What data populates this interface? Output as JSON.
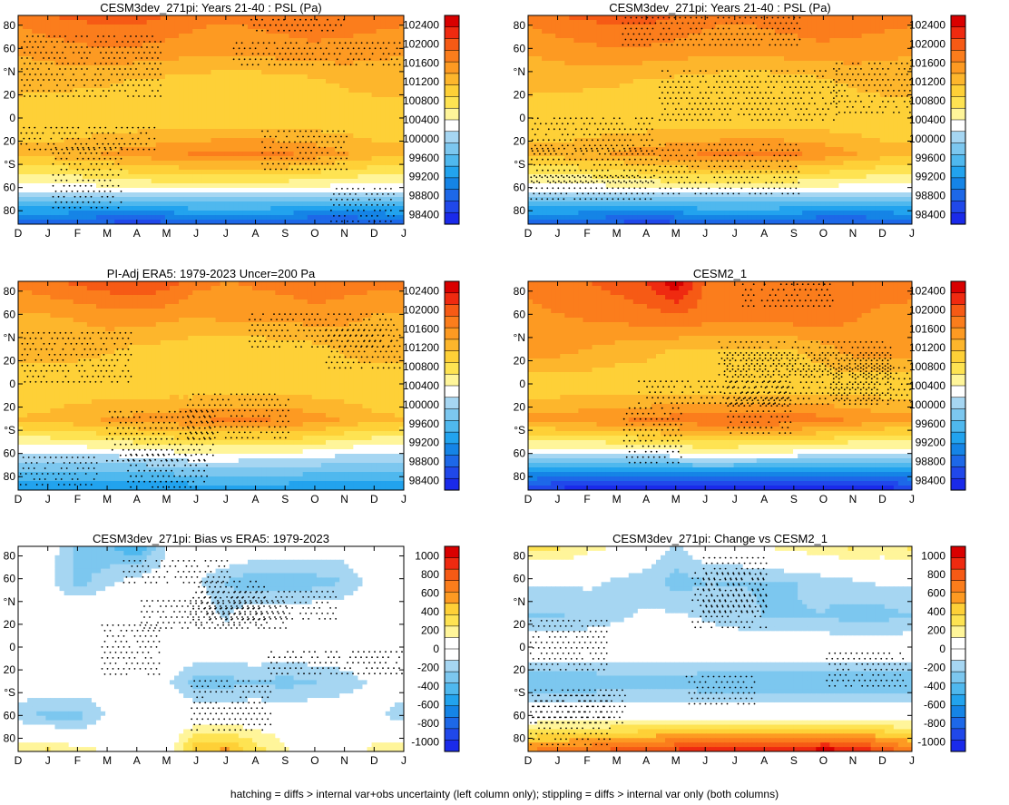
{
  "figure": {
    "footnote": "hatching = diffs > internal var+obs uncertainty (left column only); stippling = diffs > internal var only (both columns)"
  },
  "colorbars": {
    "psl": {
      "labels": [
        "102400",
        "102000",
        "101600",
        "101200",
        "100800",
        "100400",
        "100000",
        "99600",
        "99200",
        "98800",
        "98400"
      ],
      "colors": [
        "#d90000",
        "#ef2a10",
        "#f65a15",
        "#fb7d1c",
        "#fd9a22",
        "#fdb62c",
        "#fed037",
        "#fee352",
        "#fff59a",
        "#ffffff",
        "#a6d6f2",
        "#7cc7ef",
        "#4fb8ee",
        "#22a3ee",
        "#1584e6",
        "#1d68e8",
        "#2048ea",
        "#1a2aea"
      ]
    },
    "diff": {
      "labels": [
        "1000",
        "800",
        "600",
        "400",
        "200",
        "0",
        "-200",
        "-400",
        "-600",
        "-800",
        "-1000"
      ],
      "colors": [
        "#d90000",
        "#ef2a10",
        "#f65a15",
        "#fb7d1c",
        "#fd9a22",
        "#fed037",
        "#fee352",
        "#fff59a",
        "#ffffff",
        "#ffffff",
        "#a6d6f2",
        "#7cc7ef",
        "#4fb8ee",
        "#22a3ee",
        "#1584e6",
        "#1d68e8",
        "#2048ea",
        "#1a2aea"
      ]
    }
  },
  "chart_data": [
    {
      "type": "heatmap",
      "title": "CESM3dev_271pi: Years 21-40 : PSL (Pa)",
      "xlabel": "",
      "ylabel": "",
      "x_ticks": [
        "D",
        "J",
        "F",
        "M",
        "A",
        "M",
        "J",
        "J",
        "A",
        "S",
        "O",
        "N",
        "D",
        "J"
      ],
      "y_ticks": [
        "80",
        "60",
        "°N",
        "20",
        "0",
        "20",
        "°S",
        "60",
        "80"
      ],
      "colorbar": "psl",
      "latitudes": [
        90,
        60,
        30,
        0,
        -30,
        -60,
        -90
      ],
      "months": [
        "D",
        "J",
        "F",
        "M",
        "A",
        "M",
        "J",
        "J",
        "A",
        "S",
        "O",
        "N",
        "D",
        "J"
      ],
      "values": [
        [
          101700,
          101850,
          101900,
          101950,
          101950,
          101850,
          101700,
          101650,
          101700,
          101750,
          101800,
          101800,
          101750,
          101700
        ],
        [
          101400,
          101450,
          101550,
          101550,
          101550,
          101500,
          101450,
          101450,
          101450,
          101500,
          101550,
          101500,
          101450,
          101400
        ],
        [
          101200,
          101200,
          101150,
          101150,
          101000,
          101000,
          100950,
          100900,
          100900,
          100950,
          101000,
          101150,
          101200,
          101200
        ],
        [
          100950,
          100900,
          100950,
          100950,
          100950,
          100950,
          100900,
          100950,
          100950,
          100950,
          100950,
          100950,
          100950,
          100950
        ],
        [
          101200,
          101250,
          101300,
          101400,
          101500,
          101550,
          101650,
          101700,
          101700,
          101650,
          101550,
          101400,
          101250,
          101200
        ],
        [
          100300,
          100300,
          100300,
          100350,
          100400,
          100450,
          100450,
          100400,
          100400,
          100400,
          100350,
          100300,
          100300,
          100300
        ],
        [
          98800,
          98800,
          98750,
          98700,
          98650,
          98700,
          98750,
          98800,
          98800,
          98750,
          98700,
          98700,
          98750,
          98800
        ]
      ]
    },
    {
      "type": "heatmap",
      "title": "CESM3dev_271pi: Years 21-40 : PSL (Pa)",
      "xlabel": "",
      "ylabel": "",
      "x_ticks": [
        "D",
        "J",
        "F",
        "M",
        "A",
        "M",
        "J",
        "J",
        "A",
        "S",
        "O",
        "N",
        "D",
        "J"
      ],
      "y_ticks": [
        "80",
        "60",
        "°N",
        "20",
        "0",
        "20",
        "°S",
        "60",
        "80"
      ],
      "colorbar": "psl",
      "latitudes": [
        90,
        60,
        30,
        0,
        -30,
        -60,
        -90
      ],
      "months": [
        "D",
        "J",
        "F",
        "M",
        "A",
        "M",
        "J",
        "J",
        "A",
        "S",
        "O",
        "N",
        "D",
        "J"
      ],
      "values": [
        [
          101700,
          101850,
          101900,
          101950,
          101950,
          101850,
          101700,
          101650,
          101700,
          101750,
          101800,
          101800,
          101750,
          101700
        ],
        [
          101400,
          101450,
          101550,
          101550,
          101550,
          101500,
          101450,
          101450,
          101450,
          101500,
          101550,
          101500,
          101450,
          101400
        ],
        [
          101200,
          101200,
          101150,
          101150,
          101000,
          101000,
          100950,
          100900,
          100900,
          100950,
          101000,
          101150,
          101200,
          101200
        ],
        [
          100950,
          100900,
          100950,
          100950,
          100950,
          100950,
          100900,
          100950,
          100950,
          100950,
          100950,
          100950,
          100950,
          100950
        ],
        [
          101200,
          101250,
          101300,
          101400,
          101500,
          101550,
          101650,
          101700,
          101700,
          101650,
          101550,
          101400,
          101250,
          101200
        ],
        [
          100300,
          100300,
          100300,
          100350,
          100400,
          100450,
          100450,
          100400,
          100400,
          100400,
          100350,
          100300,
          100300,
          100300
        ],
        [
          98800,
          98800,
          98750,
          98700,
          98650,
          98700,
          98750,
          98800,
          98800,
          98750,
          98700,
          98700,
          98750,
          98800
        ]
      ]
    },
    {
      "type": "heatmap",
      "title": "PI-Adj ERA5: 1979-2023 Uncer=200 Pa",
      "xlabel": "",
      "ylabel": "",
      "x_ticks": [
        "D",
        "J",
        "F",
        "M",
        "A",
        "M",
        "J",
        "J",
        "A",
        "S",
        "O",
        "N",
        "D",
        "J"
      ],
      "y_ticks": [
        "80",
        "60",
        "°N",
        "20",
        "0",
        "20",
        "°S",
        "60",
        "80"
      ],
      "colorbar": "psl",
      "latitudes": [
        90,
        60,
        30,
        0,
        -30,
        -60,
        -90
      ],
      "months": [
        "D",
        "J",
        "F",
        "M",
        "A",
        "M",
        "J",
        "J",
        "A",
        "S",
        "O",
        "N",
        "D",
        "J"
      ],
      "values": [
        [
          101700,
          101800,
          101900,
          102000,
          102100,
          101950,
          101700,
          101600,
          101650,
          101700,
          101800,
          101750,
          101700,
          101700
        ],
        [
          101300,
          101350,
          101400,
          101500,
          101500,
          101450,
          101350,
          101450,
          101450,
          101450,
          101500,
          101450,
          101350,
          101300
        ],
        [
          101250,
          101250,
          101200,
          101150,
          101050,
          101000,
          100950,
          100900,
          100900,
          100950,
          101000,
          101150,
          101250,
          101250
        ],
        [
          100950,
          100950,
          100950,
          100950,
          100950,
          100950,
          100900,
          100950,
          100950,
          100950,
          100950,
          100950,
          100950,
          100950
        ],
        [
          101150,
          101200,
          101300,
          101400,
          101450,
          101500,
          101600,
          101650,
          101650,
          101600,
          101500,
          101350,
          101200,
          101150
        ],
        [
          100150,
          100150,
          100150,
          100200,
          100250,
          100300,
          100400,
          100350,
          100350,
          100350,
          100300,
          100200,
          100150,
          100150
        ],
        [
          99200,
          99200,
          99300,
          99250,
          99200,
          99200,
          99300,
          99400,
          99350,
          99300,
          99200,
          99200,
          99250,
          99200
        ]
      ]
    },
    {
      "type": "heatmap",
      "title": "CESM2_1",
      "xlabel": "",
      "ylabel": "",
      "x_ticks": [
        "D",
        "J",
        "F",
        "M",
        "A",
        "M",
        "J",
        "J",
        "A",
        "S",
        "O",
        "N",
        "D",
        "J"
      ],
      "y_ticks": [
        "80",
        "60",
        "°N",
        "20",
        "0",
        "20",
        "°S",
        "60",
        "80"
      ],
      "colorbar": "psl",
      "latitudes": [
        90,
        60,
        30,
        0,
        -30,
        -60,
        -90
      ],
      "months": [
        "D",
        "J",
        "F",
        "M",
        "A",
        "M",
        "J",
        "J",
        "A",
        "S",
        "O",
        "N",
        "D",
        "J"
      ],
      "values": [
        [
          101700,
          101800,
          101850,
          101950,
          102100,
          102500,
          101850,
          101700,
          101650,
          101700,
          101750,
          101800,
          101750,
          101700
        ],
        [
          101550,
          101600,
          101650,
          101700,
          101750,
          101800,
          101750,
          101700,
          101700,
          101750,
          101750,
          101650,
          101550,
          101550
        ],
        [
          101450,
          101450,
          101350,
          101250,
          101200,
          101100,
          101100,
          101050,
          101050,
          101100,
          101250,
          101450,
          101500,
          101450
        ],
        [
          100950,
          100950,
          100950,
          100950,
          100950,
          100950,
          100900,
          100950,
          100950,
          100950,
          100950,
          100950,
          100950,
          100950
        ],
        [
          101450,
          101500,
          101550,
          101600,
          101650,
          101750,
          101850,
          101850,
          101850,
          101800,
          101700,
          101600,
          101500,
          101450
        ],
        [
          100150,
          100150,
          100150,
          100200,
          100250,
          100300,
          100400,
          100350,
          100300,
          100300,
          100250,
          100150,
          100150,
          100150
        ],
        [
          98500,
          98450,
          98400,
          98350,
          98350,
          98300,
          98300,
          98300,
          98300,
          98250,
          98300,
          98350,
          98400,
          98500
        ]
      ]
    },
    {
      "type": "heatmap",
      "title": "CESM3dev_271pi: Bias vs ERA5: 1979-2023",
      "xlabel": "",
      "ylabel": "",
      "x_ticks": [
        "D",
        "J",
        "F",
        "M",
        "A",
        "M",
        "J",
        "J",
        "A",
        "S",
        "O",
        "N",
        "D",
        "J"
      ],
      "y_ticks": [
        "80",
        "60",
        "°N",
        "20",
        "0",
        "20",
        "°S",
        "60",
        "80"
      ],
      "colorbar": "diff",
      "latitudes": [
        90,
        60,
        30,
        0,
        -30,
        -60,
        -90
      ],
      "months": [
        "D",
        "J",
        "F",
        "M",
        "A",
        "M",
        "J",
        "J",
        "A",
        "S",
        "O",
        "N",
        "D",
        "J"
      ],
      "values": [
        [
          0,
          -50,
          -300,
          -350,
          -450,
          -100,
          0,
          50,
          0,
          0,
          -50,
          -50,
          0,
          0
        ],
        [
          0,
          -100,
          -300,
          -150,
          -50,
          -50,
          -100,
          -250,
          -350,
          -350,
          -300,
          -250,
          -50,
          0
        ],
        [
          0,
          0,
          80,
          50,
          0,
          0,
          0,
          -150,
          0,
          0,
          0,
          0,
          0,
          0
        ],
        [
          0,
          0,
          0,
          0,
          0,
          0,
          0,
          0,
          0,
          0,
          0,
          0,
          0,
          0
        ],
        [
          0,
          0,
          0,
          0,
          50,
          -100,
          -300,
          -300,
          -250,
          -300,
          -250,
          -200,
          -100,
          0
        ],
        [
          -200,
          -300,
          -300,
          -100,
          0,
          0,
          0,
          0,
          0,
          0,
          0,
          0,
          -50,
          -200
        ],
        [
          200,
          250,
          150,
          100,
          0,
          0,
          450,
          500,
          300,
          150,
          0,
          0,
          150,
          200
        ]
      ]
    },
    {
      "type": "heatmap",
      "title": "CESM3dev_271pi: Change vs CESM2_1",
      "xlabel": "",
      "ylabel": "",
      "x_ticks": [
        "D",
        "J",
        "F",
        "M",
        "A",
        "M",
        "J",
        "J",
        "A",
        "S",
        "O",
        "N",
        "D",
        "J"
      ],
      "y_ticks": [
        "80",
        "60",
        "°N",
        "20",
        "0",
        "20",
        "°S",
        "60",
        "80"
      ],
      "colorbar": "diff",
      "latitudes": [
        90,
        60,
        30,
        0,
        -30,
        -60,
        -90
      ],
      "months": [
        "D",
        "J",
        "F",
        "M",
        "A",
        "M",
        "J",
        "J",
        "A",
        "S",
        "O",
        "N",
        "D",
        "J"
      ],
      "values": [
        [
          250,
          250,
          150,
          100,
          0,
          -150,
          0,
          0,
          100,
          150,
          200,
          250,
          200,
          250
        ],
        [
          -100,
          -100,
          -100,
          -150,
          -200,
          -300,
          -250,
          -250,
          -250,
          -250,
          -200,
          -150,
          -100,
          -100
        ],
        [
          -250,
          -250,
          -200,
          -150,
          -100,
          -100,
          -150,
          -200,
          -250,
          -250,
          -250,
          -300,
          -300,
          -250
        ],
        [
          0,
          0,
          0,
          0,
          0,
          0,
          0,
          0,
          0,
          0,
          0,
          0,
          0,
          0
        ],
        [
          -350,
          -350,
          -350,
          -300,
          -300,
          -300,
          -350,
          -350,
          -350,
          -350,
          -350,
          -350,
          -350,
          -350
        ],
        [
          0,
          0,
          0,
          0,
          0,
          0,
          0,
          0,
          0,
          0,
          0,
          0,
          0,
          0
        ],
        [
          600,
          650,
          700,
          750,
          800,
          850,
          950,
          950,
          900,
          900,
          1000,
          950,
          800,
          650
        ]
      ]
    }
  ]
}
